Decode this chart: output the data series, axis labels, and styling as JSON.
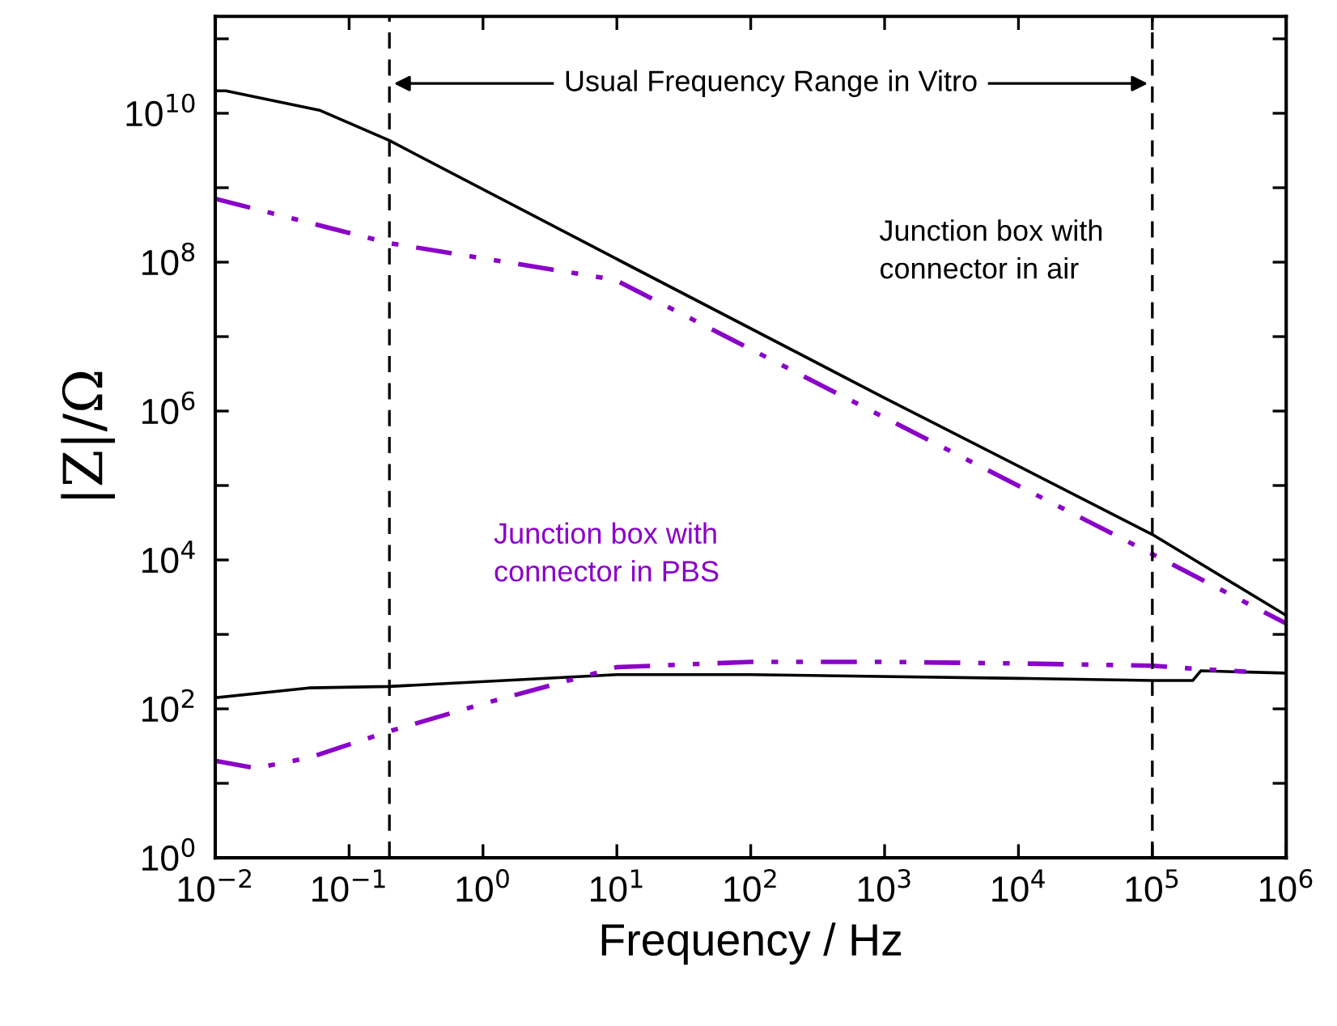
{
  "chart_data": {
    "type": "line",
    "xlabel": "Frequency / Hz",
    "ylabel": "|Z|/Ω",
    "log": "xy",
    "xlim": [
      0.01,
      1000000
    ],
    "ylim": [
      1,
      200000000000.0
    ],
    "xticks": [
      {
        "value": 0.01,
        "label": "10$^{−2}$"
      },
      {
        "value": 0.1,
        "label": "10$^{−1}$"
      },
      {
        "value": 1,
        "label": "10$^{0}$"
      },
      {
        "value": 10,
        "label": "10$^{1}$"
      },
      {
        "value": 100,
        "label": "10$^{2}$"
      },
      {
        "value": 1000,
        "label": "10$^{3}$"
      },
      {
        "value": 10000,
        "label": "10$^{4}$"
      },
      {
        "value": 100000,
        "label": "10$^{5}$"
      },
      {
        "value": 1000000,
        "label": "10$^{6}$"
      }
    ],
    "yticks": [
      {
        "value": 1,
        "label": "10$^{0}$"
      },
      {
        "value": 10,
        "label": null
      },
      {
        "value": 100,
        "label": "10$^{2}$"
      },
      {
        "value": 1000,
        "label": null
      },
      {
        "value": 10000,
        "label": "10$^{4}$"
      },
      {
        "value": 100000,
        "label": null
      },
      {
        "value": 1000000,
        "label": "10$^{6}$"
      },
      {
        "value": 10000000,
        "label": null
      },
      {
        "value": 100000000,
        "label": "10$^{8}$"
      },
      {
        "value": 1000000000,
        "label": null
      },
      {
        "value": 10000000000,
        "label": "10$^{10}$"
      },
      {
        "value": 100000000000,
        "label": null
      }
    ],
    "grid": false,
    "legend": false,
    "marker": "none",
    "series": [
      {
        "name": "Junction box with\nconnector in air",
        "color": "#000000",
        "line_style": "solid",
        "x": [
          0.01,
          0.012,
          0.06,
          0.2,
          10,
          1000,
          100000,
          1000000
        ],
        "values": [
          20000000000.0,
          20000000000.0,
          11000000000.0,
          4300000000.0,
          110000000.0,
          1500000.0,
          22000.0,
          1800.0
        ]
      },
      {
        "name": "Junction box with\nconnector in PBS",
        "color": "#8a00c8",
        "line_style": "dashdot",
        "x": [
          0.01,
          0.2,
          9.7,
          480,
          100000,
          1000000
        ],
        "values": [
          710000000.0,
          180000000.0,
          58000000.0,
          1600000.0,
          12000.0,
          1400.0
        ]
      },
      {
        "color": "#000000",
        "line_style": "solid",
        "x": [
          0.01,
          0.05,
          0.2,
          10,
          100,
          10000,
          100000,
          200000,
          230000,
          1000000
        ],
        "values": [
          141,
          191,
          200,
          288,
          288,
          257,
          240,
          240,
          324,
          302
        ]
      },
      {
        "color": "#8a00c8",
        "line_style": "dashdot",
        "x": [
          0.01,
          0.02,
          0.05,
          0.2,
          1,
          5,
          10,
          100,
          1000,
          10000,
          100000,
          200000,
          500000
        ],
        "values": [
          20,
          16,
          22,
          50,
          117,
          257,
          363,
          427,
          427,
          407,
          380,
          347,
          316
        ]
      }
    ],
    "ref_lines": [
      {
        "axis": "x",
        "value": 0.2,
        "line_style": "dashed",
        "color": "#000000"
      },
      {
        "axis": "x",
        "value": 100000,
        "line_style": "dashed",
        "color": "#000000"
      }
    ],
    "annotations": [
      "Usual Frequency Range in Vitro"
    ]
  }
}
